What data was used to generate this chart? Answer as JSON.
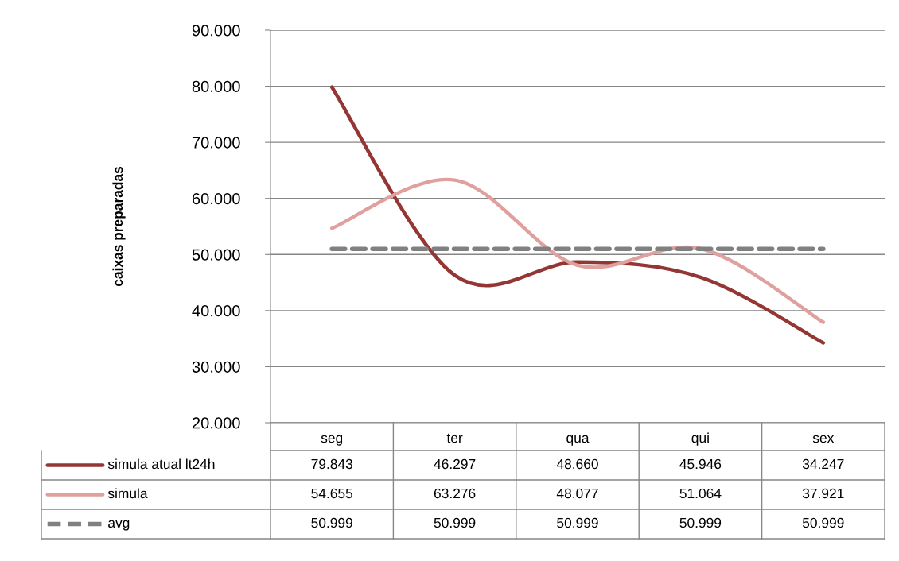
{
  "chart_data": {
    "type": "line",
    "ylabel": "caixas preparadas",
    "categories": [
      "seg",
      "ter",
      "qua",
      "qui",
      "sex"
    ],
    "series": [
      {
        "name": "simula atual lt24h",
        "color": "#943634",
        "line_style": "solid",
        "values": [
          79843,
          46297,
          48660,
          45946,
          34247
        ],
        "value_labels": [
          "79.843",
          "46.297",
          "48.660",
          "45.946",
          "34.247"
        ]
      },
      {
        "name": "simula",
        "color": "#e0a09e",
        "line_style": "solid",
        "values": [
          54655,
          63276,
          48077,
          51064,
          37921
        ],
        "value_labels": [
          "54.655",
          "63.276",
          "48.077",
          "51.064",
          "37.921"
        ]
      },
      {
        "name": "avg",
        "color": "#808080",
        "line_style": "dashed",
        "values": [
          50999,
          50999,
          50999,
          50999,
          50999
        ],
        "value_labels": [
          "50.999",
          "50.999",
          "50.999",
          "50.999",
          "50.999"
        ]
      }
    ],
    "ylim": [
      20000,
      90000
    ],
    "yticks": [
      {
        "value": 20000,
        "label": "20.000"
      },
      {
        "value": 30000,
        "label": "30.000"
      },
      {
        "value": 40000,
        "label": "40.000"
      },
      {
        "value": 50000,
        "label": "50.000"
      },
      {
        "value": 60000,
        "label": "60.000"
      },
      {
        "value": 70000,
        "label": "70.000"
      },
      {
        "value": 80000,
        "label": "80.000"
      },
      {
        "value": 90000,
        "label": "90.000"
      }
    ],
    "grid": "y",
    "marker": "none",
    "legend": "bottom left"
  }
}
